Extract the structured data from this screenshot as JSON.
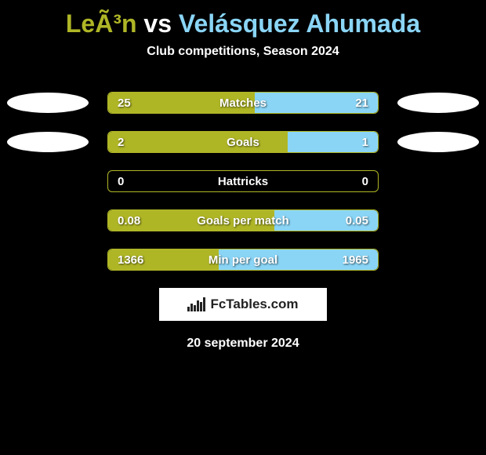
{
  "title": {
    "left_name": "LeÃ³n",
    "vs": "vs",
    "right_name": "Velásquez Ahumada"
  },
  "subtitle": "Club competitions, Season 2024",
  "colors": {
    "left": "#afb626",
    "right": "#8ad5f6",
    "bar_border": "#afb626",
    "oval": "#ffffff",
    "background": "#000000",
    "text": "#ffffff"
  },
  "rows": [
    {
      "label": "Matches",
      "left_value": "25",
      "right_value": "21",
      "left_pct": 54.3,
      "right_pct": 45.7,
      "show_oval_left": true,
      "show_oval_right": true,
      "right_fill_visible": true
    },
    {
      "label": "Goals",
      "left_value": "2",
      "right_value": "1",
      "left_pct": 66.7,
      "right_pct": 33.3,
      "show_oval_left": true,
      "show_oval_right": true,
      "right_fill_visible": true
    },
    {
      "label": "Hattricks",
      "left_value": "0",
      "right_value": "0",
      "left_pct": 0,
      "right_pct": 0,
      "show_oval_left": false,
      "show_oval_right": false,
      "right_fill_visible": false
    },
    {
      "label": "Goals per match",
      "left_value": "0.08",
      "right_value": "0.05",
      "left_pct": 61.5,
      "right_pct": 38.5,
      "show_oval_left": false,
      "show_oval_right": false,
      "right_fill_visible": true
    },
    {
      "label": "Min per goal",
      "left_value": "1366",
      "right_value": "1965",
      "left_pct": 41.0,
      "right_pct": 59.0,
      "show_oval_left": false,
      "show_oval_right": false,
      "right_fill_visible": true
    }
  ],
  "footer": {
    "brand": "FcTables.com",
    "date": "20 september 2024"
  }
}
